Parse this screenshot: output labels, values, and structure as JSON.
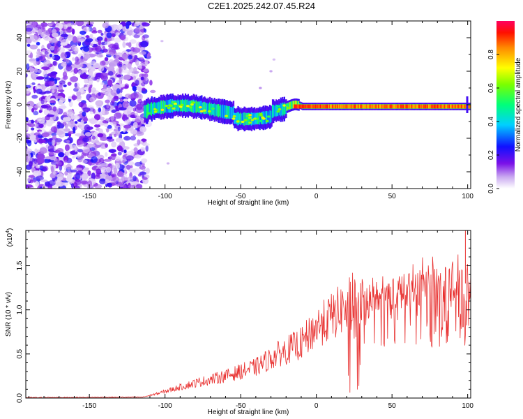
{
  "title": "C2E1.2025.242.07.45.R24",
  "colors": {
    "signal": "#e8302f",
    "axis": "#000000"
  },
  "chart_data": [
    {
      "type": "heatmap",
      "name": "spectrogram",
      "xlabel": "Height of straight line (km)",
      "ylabel": "Frequency (Hz)",
      "xlim": [
        -192,
        102
      ],
      "ylim": [
        -50,
        50
      ],
      "xticks": [
        -150,
        -100,
        -50,
        0,
        50,
        100
      ],
      "yticks": [
        -40,
        -20,
        0,
        20,
        40
      ],
      "colorbar": {
        "label": "Normalized spectral amplitude",
        "range": [
          0.0,
          1.0
        ],
        "ticks": [
          0.0,
          0.2,
          0.4,
          0.6,
          0.8
        ],
        "tick_labels": [
          "0.0",
          "0.2",
          "0.4",
          "0.6",
          "0.8"
        ]
      },
      "ridge_note": "Noise cloud below -112 km; band centred near -3 Hz from -112 to -20 km, narrowing to a strong line at about -1 Hz from -15 to 100 km"
    },
    {
      "type": "line",
      "name": "snr",
      "xlabel": "Height of straight line (km)",
      "ylabel": "SNR (10 * v/v)",
      "exponent_label": "(x10",
      "exponent_power": "4",
      "xlim": [
        -192,
        102
      ],
      "ylim": [
        0,
        1.9
      ],
      "xticks": [
        -150,
        -100,
        -50,
        0,
        50,
        100
      ],
      "yticks": [
        0.0,
        0.5,
        1.0,
        1.5
      ],
      "ytick_labels": [
        "0.0",
        "0.5",
        "1.0",
        "1.5"
      ],
      "trend": {
        "x": [
          -192,
          -115,
          -105,
          -95,
          -80,
          -60,
          -40,
          -25,
          -10,
          0,
          10,
          20,
          30,
          50,
          65,
          70,
          90,
          100
        ],
        "y": [
          0.005,
          0.01,
          0.05,
          0.1,
          0.17,
          0.25,
          0.35,
          0.5,
          0.62,
          0.8,
          0.92,
          1.05,
          1.18,
          1.2,
          1.22,
          1.3,
          1.32,
          1.3
        ]
      }
    }
  ]
}
